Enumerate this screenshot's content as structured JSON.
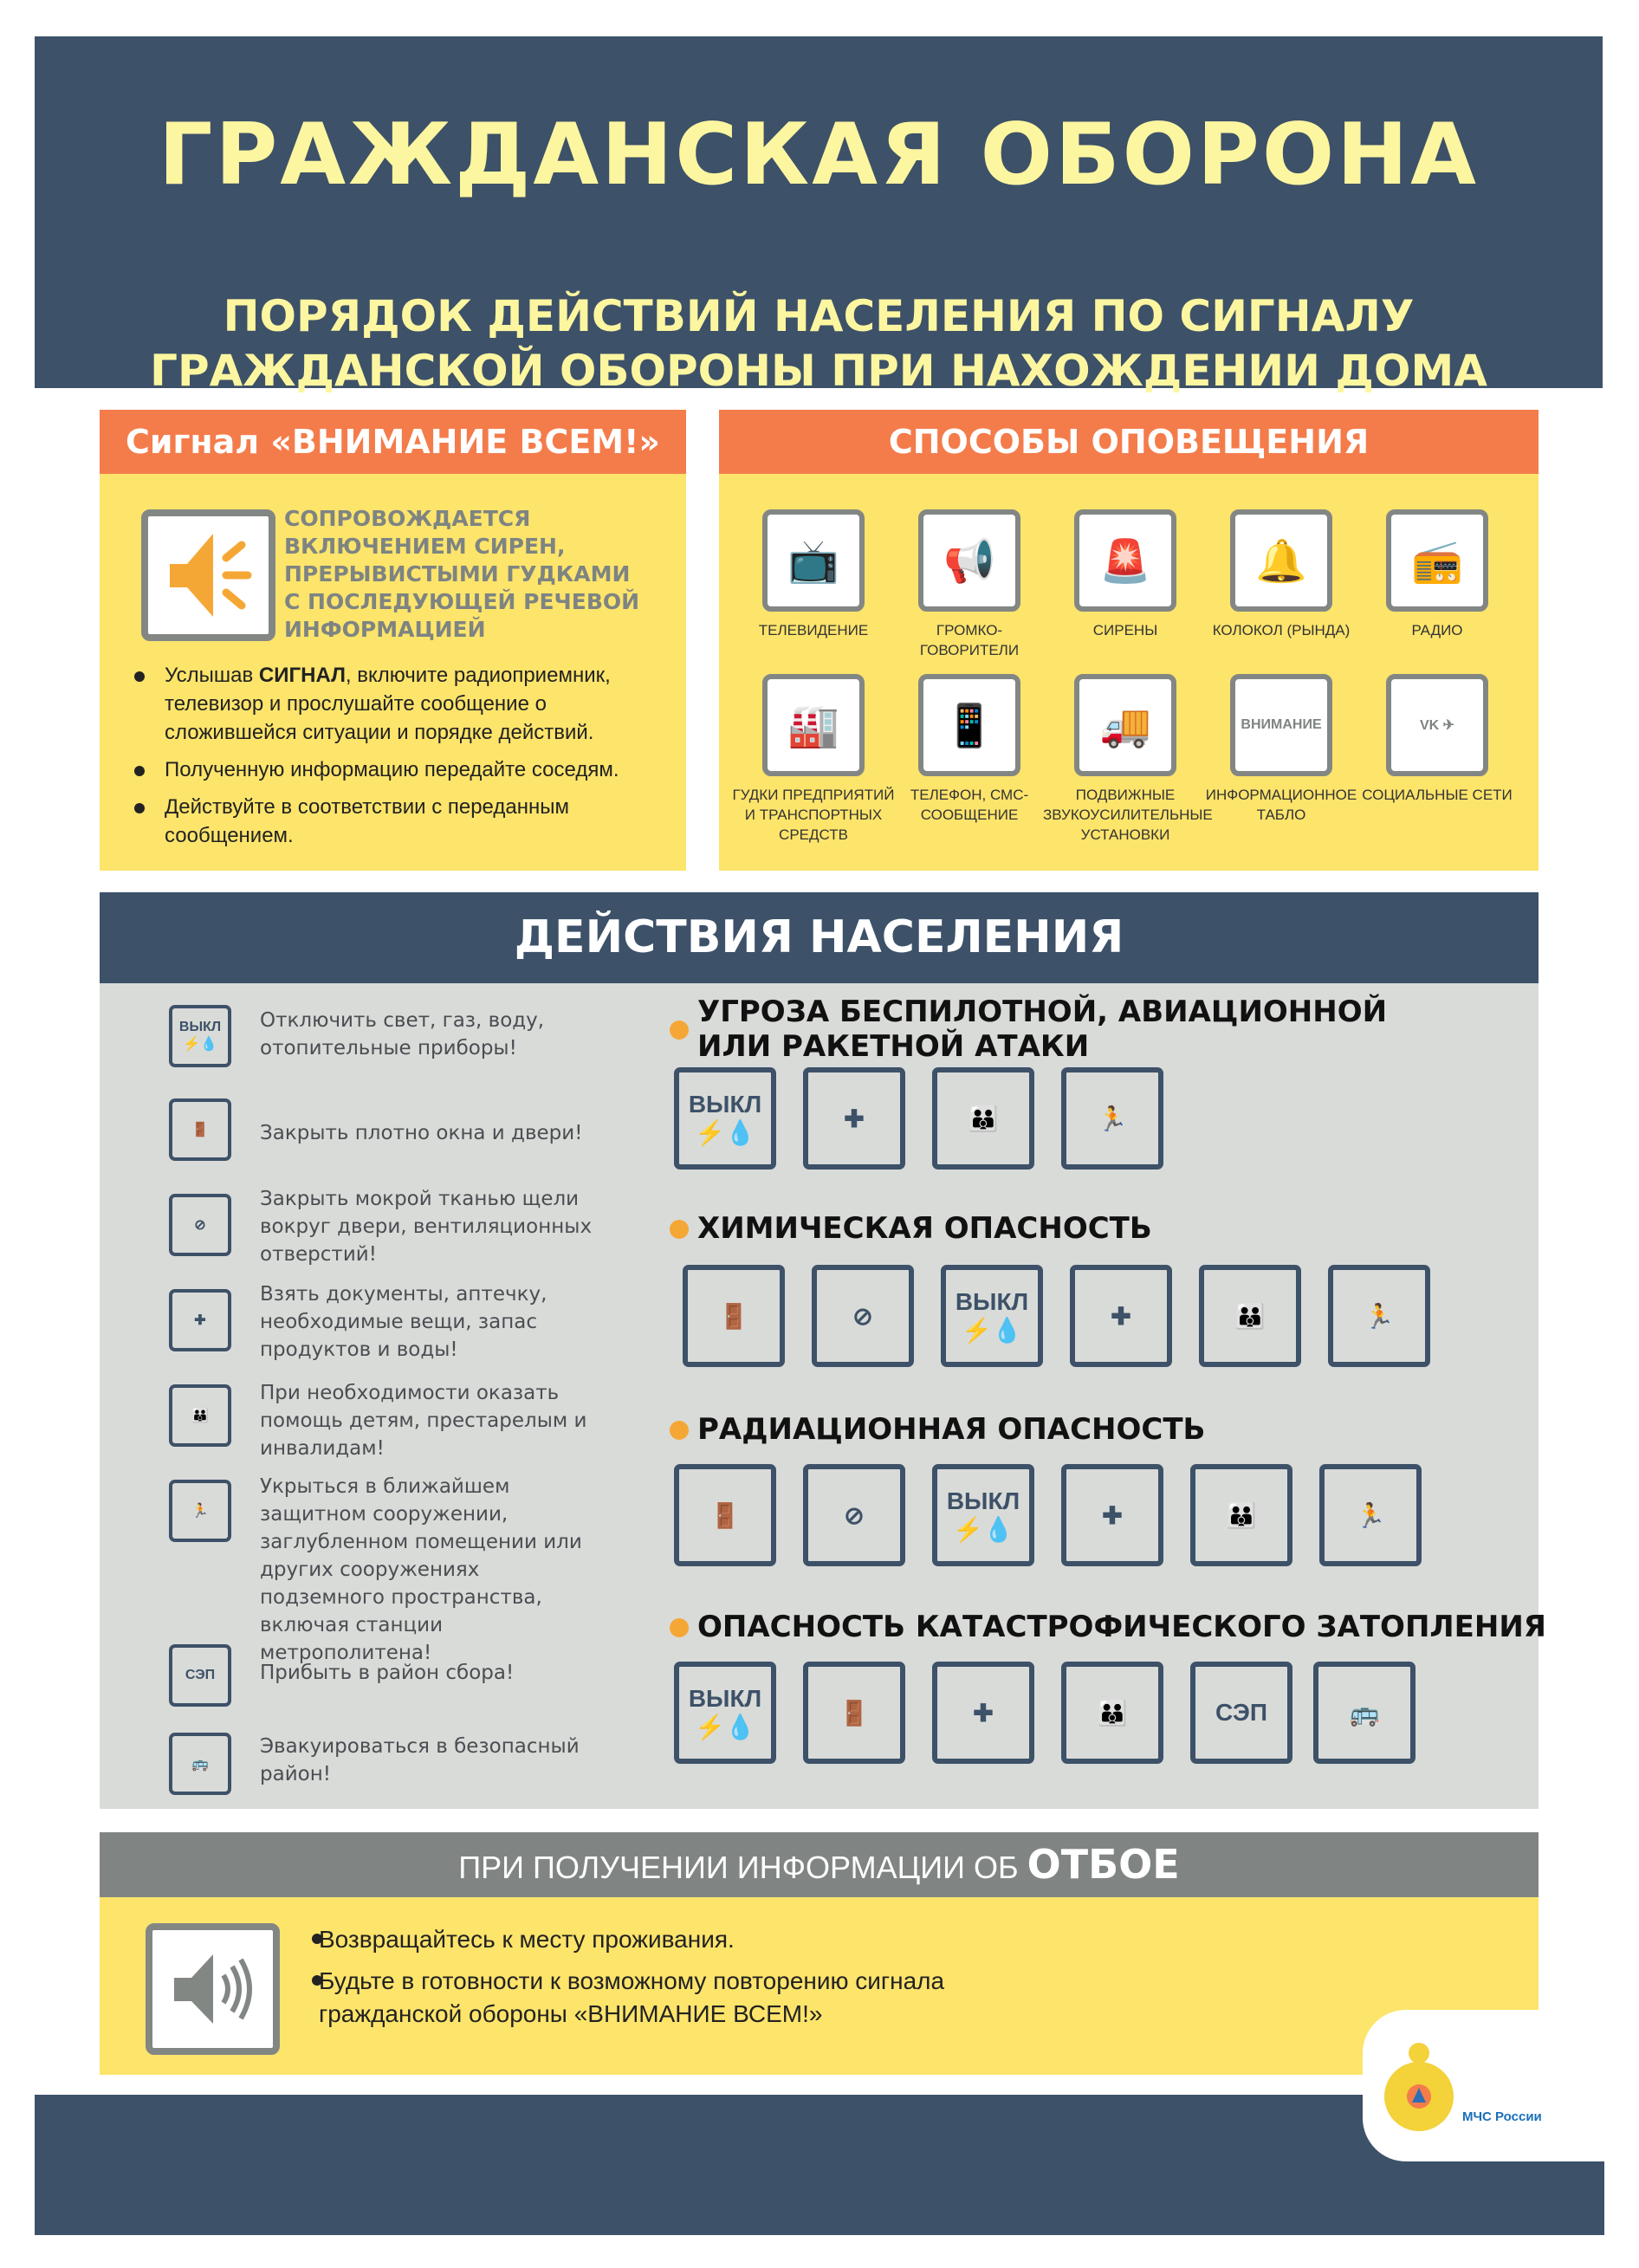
{
  "header": {
    "title": "ГРАЖДАНСКАЯ ОБОРОНА",
    "subtitle_1": "ПОРЯДОК ДЕЙСТВИЙ НАСЕЛЕНИЯ ПО СИГНАЛУ",
    "subtitle_2": "ГРАЖДАНСКОЙ ОБОРОНЫ ПРИ НАХОЖДЕНИИ ДОМА"
  },
  "signal": {
    "title": "Сигнал  «ВНИМАНИЕ ВСЕМ!»",
    "description": "СОПРОВОЖДАЕТСЯ ВКЛЮЧЕНИЕМ СИРЕН, ПРЕРЫВИСТЫМИ ГУДКАМИ С ПОСЛЕДУЮЩЕЙ РЕЧЕВОЙ ИНФОРМАЦИЕЙ",
    "icon": "speaker-loud-icon",
    "bullets": [
      {
        "pre": "Услышав ",
        "bold": "СИГНАЛ",
        "post": ", включите радиоприемник, телевизор и прослушайте сообщение о сложившейся ситуации и порядке действий."
      },
      {
        "pre": "Полученную информацию передайте соседям.",
        "bold": "",
        "post": ""
      },
      {
        "pre": "Действуйте в соответствии с переданным сообщением.",
        "bold": "",
        "post": ""
      }
    ]
  },
  "methods": {
    "title": "СПОСОБЫ ОПОВЕЩЕНИЯ",
    "items": [
      {
        "label": "ТЕЛЕВИДЕНИЕ",
        "icon": "tv-icon",
        "glyph": "📺"
      },
      {
        "label": "ГРОМКО-ГОВОРИТЕЛИ",
        "icon": "loudspeaker-icon",
        "glyph": "📢"
      },
      {
        "label": "СИРЕНЫ",
        "icon": "siren-icon",
        "glyph": "🚨"
      },
      {
        "label": "КОЛОКОЛ (РЫНДА)",
        "icon": "bell-icon",
        "glyph": "🔔"
      },
      {
        "label": "РАДИО",
        "icon": "radio-icon",
        "glyph": "📻"
      },
      {
        "label": "ГУДКИ ПРЕДПРИЯТИЙ И ТРАНСПОРТНЫХ СРЕДСТВ",
        "icon": "factory-icon",
        "glyph": "🏭"
      },
      {
        "label": "ТЕЛЕФОН, СМС-СООБЩЕНИЕ",
        "icon": "phone-icon",
        "glyph": "📱"
      },
      {
        "label": "ПОДВИЖНЫЕ ЗВУКОУСИЛИТЕЛЬНЫЕ УСТАНОВКИ",
        "icon": "truck-icon",
        "glyph": "🚚"
      },
      {
        "label": "ИНФОРМАЦИОННОЕ ТАБЛО",
        "icon": "board-icon",
        "glyph": "ВНИМАНИЕ"
      },
      {
        "label": "СОЦИАЛЬНЫЕ СЕТИ",
        "icon": "social-networks-icon",
        "glyph": "VK ✈"
      }
    ]
  },
  "actions": {
    "title": "ДЕЙСТВИЯ НАСЕЛЕНИЯ",
    "items": [
      {
        "text": "Отключить свет, газ, воду, отопительные приборы!",
        "icon": "off-utilities-icon",
        "glyph": "ВЫКЛ ⚡💧"
      },
      {
        "text": "Закрыть плотно окна и двери!",
        "icon": "close-doors-icon",
        "glyph": "🚪"
      },
      {
        "text": "Закрыть мокрой тканью щели вокруг двери, вентиляционных отверстий!",
        "icon": "seal-vents-icon",
        "glyph": "⊘"
      },
      {
        "text": "Взять документы, аптечку, необходимые вещи, запас продуктов и воды!",
        "icon": "supplies-icon",
        "glyph": "✚"
      },
      {
        "text": "При необходимости оказать помощь детям, престарелым и инвалидам!",
        "icon": "help-people-icon",
        "glyph": "👪"
      },
      {
        "text": "Укрыться в ближайшем защитном сооружении, заглубленном помещении или других сооружениях подземного пространства, включая станции метрополитена!",
        "icon": "shelter-icon",
        "glyph": "🏃"
      },
      {
        "text": "Прибыть в район сбора!",
        "icon": "sep-icon",
        "glyph": "СЭП"
      },
      {
        "text": "Эвакуироваться в безопасный район!",
        "icon": "evacuate-icon",
        "glyph": "🚌"
      }
    ],
    "scenarios": [
      {
        "title": "УГРОЗА БЕСПИЛОТНОЙ, АВИАЦИОННОЙ ИЛИ РАКЕТНОЙ АТАКИ",
        "icons": [
          0,
          3,
          4,
          5
        ]
      },
      {
        "title": "ХИМИЧЕСКАЯ ОПАСНОСТЬ",
        "icons": [
          1,
          2,
          0,
          3,
          4,
          5
        ]
      },
      {
        "title": "РАДИАЦИОННАЯ ОПАСНОСТЬ",
        "icons": [
          1,
          2,
          0,
          3,
          4,
          5
        ]
      },
      {
        "title": "ОПАСНОСТЬ КАТАСТРОФИЧЕСКОГО ЗАТОПЛЕНИЯ",
        "icons": [
          0,
          1,
          3,
          4,
          6,
          7
        ]
      }
    ]
  },
  "allclear": {
    "title_pre": "ПРИ ПОЛУЧЕНИИ ИНФОРМАЦИИ ОБ ",
    "title_bold": "ОТБОЕ",
    "icon": "speaker-icon",
    "bullets": [
      "Возвращайтесь к месту проживания.",
      "Будьте в готовности к возможному повторению сигнала гражданской обороны «ВНИМАНИЕ ВСЕМ!»"
    ]
  },
  "logo": {
    "text": "МЧС России",
    "icon": "emercom-emblem-icon"
  },
  "colors": {
    "dark": "#3d5168",
    "title_yellow": "#fdf6a0",
    "orange": "#f47c4b",
    "yellow": "#fde46b",
    "gray_panel": "#d9dbd8",
    "dot": "#f5a736"
  }
}
